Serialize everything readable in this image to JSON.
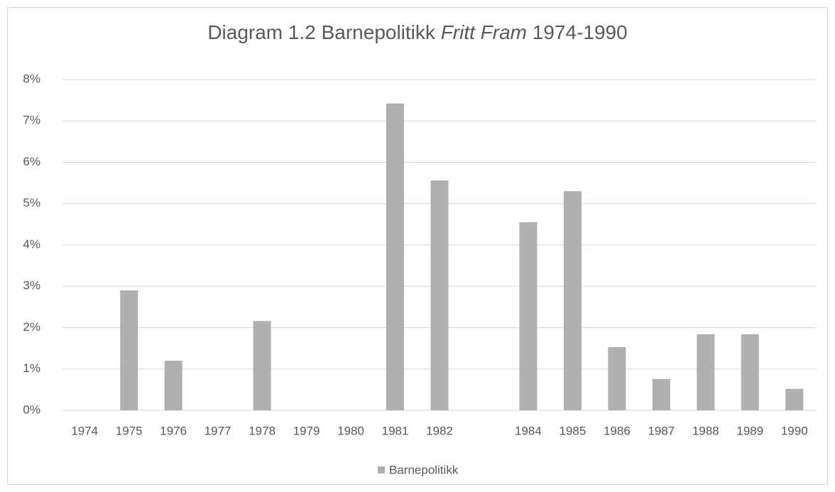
{
  "chart_data": {
    "type": "bar",
    "title": [
      "Diagram 1.2 Barnepolitikk ",
      "Fritt Fram",
      " 1974-1990"
    ],
    "categories": [
      "1974",
      "1975",
      "1976",
      "1977",
      "1978",
      "1979",
      "1980",
      "1981",
      "1982",
      null,
      "1984",
      "1985",
      "1986",
      "1987",
      "1988",
      "1989",
      "1990"
    ],
    "series": [
      {
        "name": "Barnepolitikk",
        "color": "#b0b0b0",
        "values": [
          0,
          2.9,
          1.2,
          0,
          2.16,
          0,
          0,
          7.42,
          5.56,
          0,
          4.55,
          5.3,
          1.53,
          0.76,
          1.84,
          1.84,
          0.52
        ]
      }
    ],
    "ylim": [
      0,
      8
    ],
    "yticks": [
      {
        "value": 0,
        "label": "0%"
      },
      {
        "value": 1,
        "label": "1%"
      },
      {
        "value": 2,
        "label": "2%"
      },
      {
        "value": 3,
        "label": "3%"
      },
      {
        "value": 4,
        "label": "4%"
      },
      {
        "value": 5,
        "label": "5%"
      },
      {
        "value": 6,
        "label": "6%"
      },
      {
        "value": 7,
        "label": "7%"
      },
      {
        "value": 8,
        "label": "8%"
      }
    ],
    "grid": true,
    "legend": "bottom"
  }
}
